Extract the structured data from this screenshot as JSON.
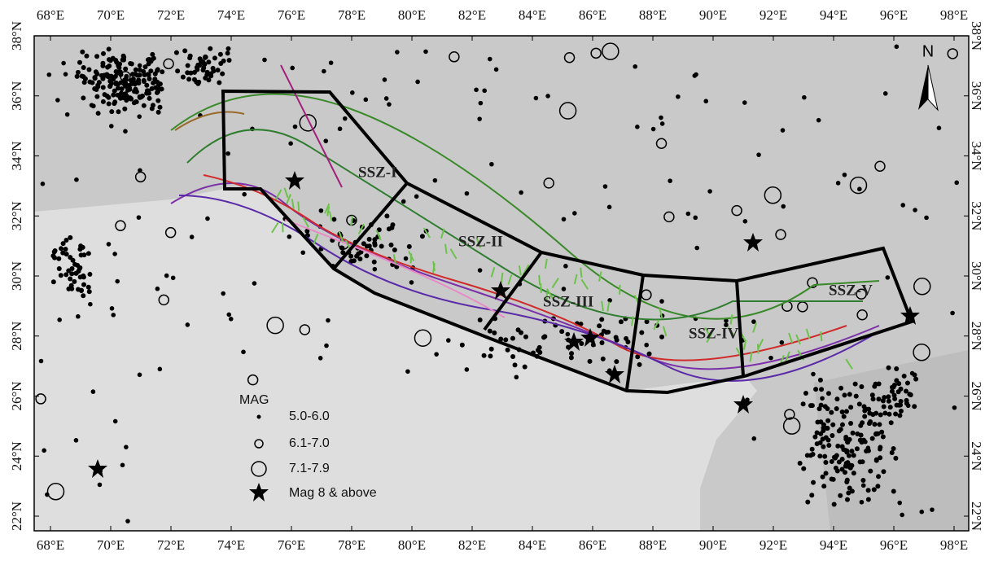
{
  "map": {
    "lon_ticks": [
      {
        "value": 68,
        "label": "68°E"
      },
      {
        "value": 70,
        "label": "70°E"
      },
      {
        "value": 72,
        "label": "72°E"
      },
      {
        "value": 74,
        "label": "74°E"
      },
      {
        "value": 76,
        "label": "76°E"
      },
      {
        "value": 78,
        "label": "78°E"
      },
      {
        "value": 80,
        "label": "80°E"
      },
      {
        "value": 82,
        "label": "82°E"
      },
      {
        "value": 84,
        "label": "84°E"
      },
      {
        "value": 86,
        "label": "86°E"
      },
      {
        "value": 88,
        "label": "88°E"
      },
      {
        "value": 90,
        "label": "90°E"
      },
      {
        "value": 92,
        "label": "92°E"
      },
      {
        "value": 94,
        "label": "94°E"
      },
      {
        "value": 96,
        "label": "96°E"
      },
      {
        "value": 98,
        "label": "98°E"
      }
    ],
    "lat_ticks": [
      {
        "value": 22,
        "label": "22°N"
      },
      {
        "value": 24,
        "label": "24°N"
      },
      {
        "value": 26,
        "label": "26°N"
      },
      {
        "value": 28,
        "label": "28°N"
      },
      {
        "value": 30,
        "label": "30°N"
      },
      {
        "value": 32,
        "label": "32°N"
      },
      {
        "value": 34,
        "label": "34°N"
      },
      {
        "value": 36,
        "label": "36°N"
      },
      {
        "value": 38,
        "label": "38°N"
      }
    ],
    "zones": [
      "SSZ-I",
      "SSZ-II",
      "SSZ-III",
      "SSZ-IV",
      "SSZ-V"
    ],
    "north": "N",
    "legend": {
      "title": "MAG",
      "items": [
        "5.0-6.0",
        "6.1-7.0",
        "7.1-7.9",
        "Mag 8 & above"
      ]
    }
  }
}
